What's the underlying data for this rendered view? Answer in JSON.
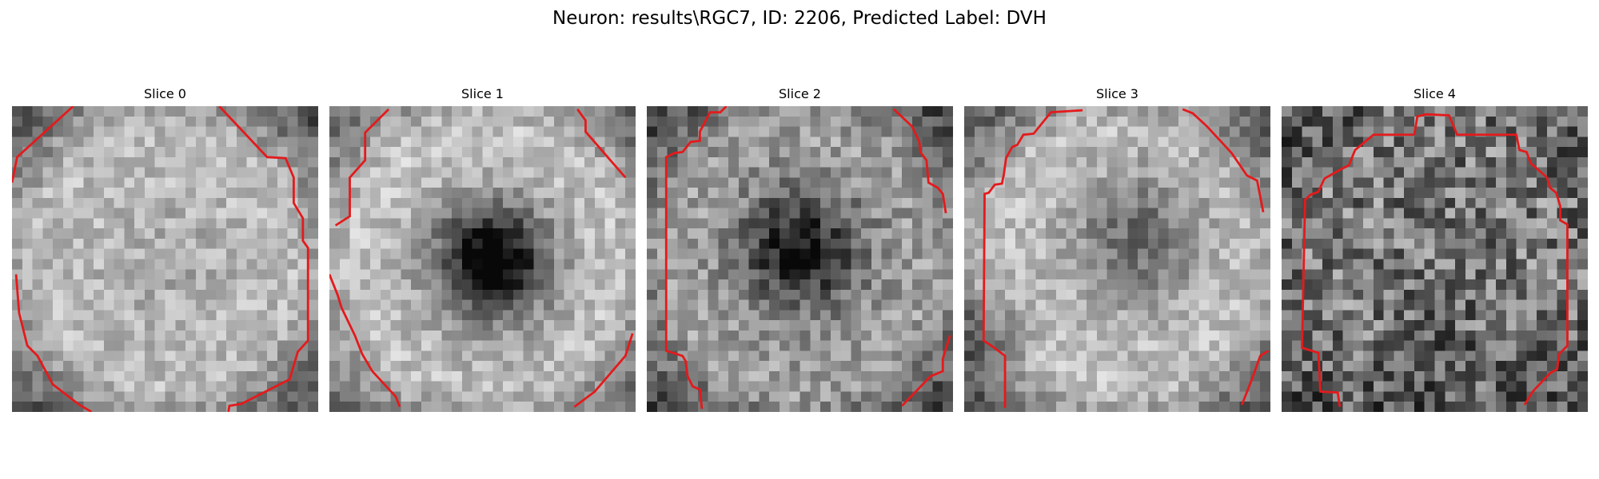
{
  "figure": {
    "title": "Neuron: results\\RGC7, ID: 2206, Predicted Label: DVH"
  },
  "panels": [
    {
      "title": "Slice 0",
      "intensity_pattern": "bright-uniform"
    },
    {
      "title": "Slice 1",
      "intensity_pattern": "bright-ring-dark-center"
    },
    {
      "title": "Slice 2",
      "intensity_pattern": "medium-dark-center"
    },
    {
      "title": "Slice 3",
      "intensity_pattern": "bright-ring-medium-center"
    },
    {
      "title": "Slice 4",
      "intensity_pattern": "dark-noisy"
    }
  ],
  "colors": {
    "contour": "#e41a1c",
    "colormap": "gray"
  }
}
